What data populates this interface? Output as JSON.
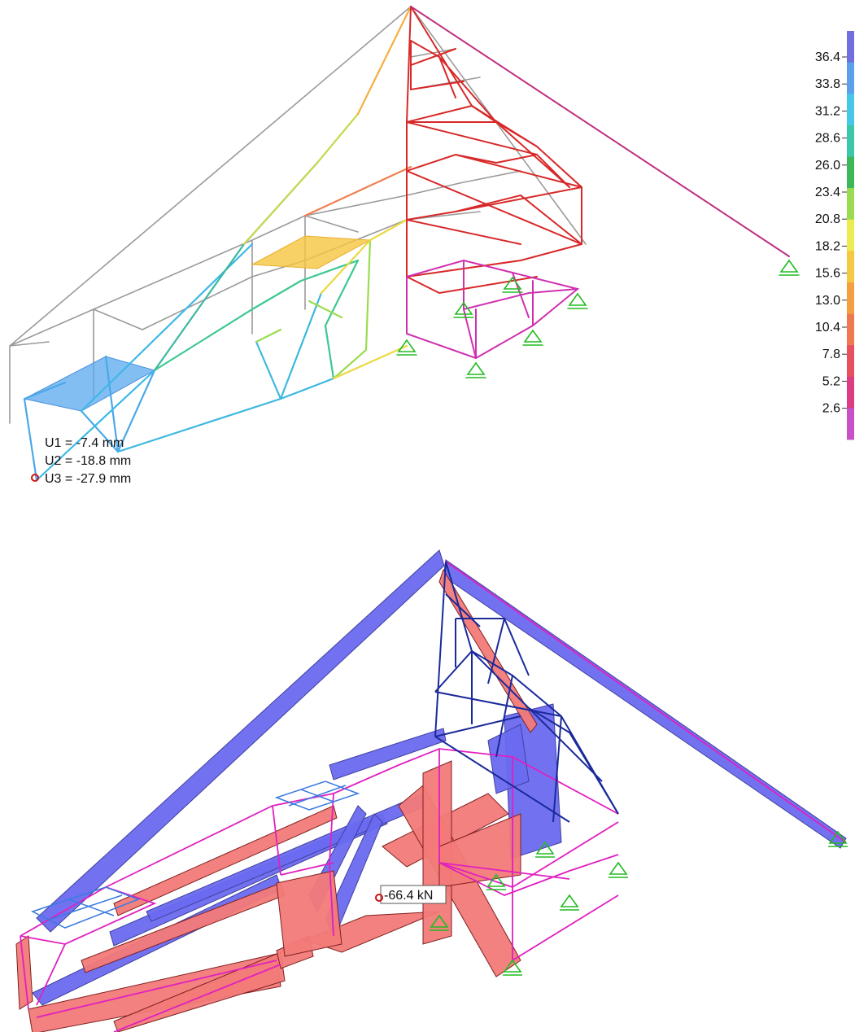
{
  "displacement_panel": {
    "colorbar": {
      "ticks": [
        "36.4",
        "33.8",
        "31.2",
        "28.6",
        "26.0",
        "23.4",
        "20.8",
        "18.2",
        "15.6",
        "13.0",
        "10.4",
        "7.8",
        "5.2",
        "2.6"
      ],
      "colors_top_to_bottom": [
        "#6f6fe0",
        "#5aa0ea",
        "#46c8e6",
        "#3cc8a8",
        "#3cb85a",
        "#9adc50",
        "#ecec50",
        "#f5c842",
        "#f5a040",
        "#f07850",
        "#e85060",
        "#dc3c82",
        "#c850c8"
      ]
    },
    "point_label": {
      "u1": "U1 = -7.4 mm",
      "u2": "U2 = -18.8 mm",
      "u3": "U3 = -27.9 mm"
    }
  },
  "force_panel": {
    "point_label": "-66.4 kN",
    "colors": {
      "compression": "#6a6af0",
      "tension": "#f27a78",
      "frame": "#e020c0",
      "truss": "#1a2a9a",
      "support": "#22bb22"
    }
  }
}
